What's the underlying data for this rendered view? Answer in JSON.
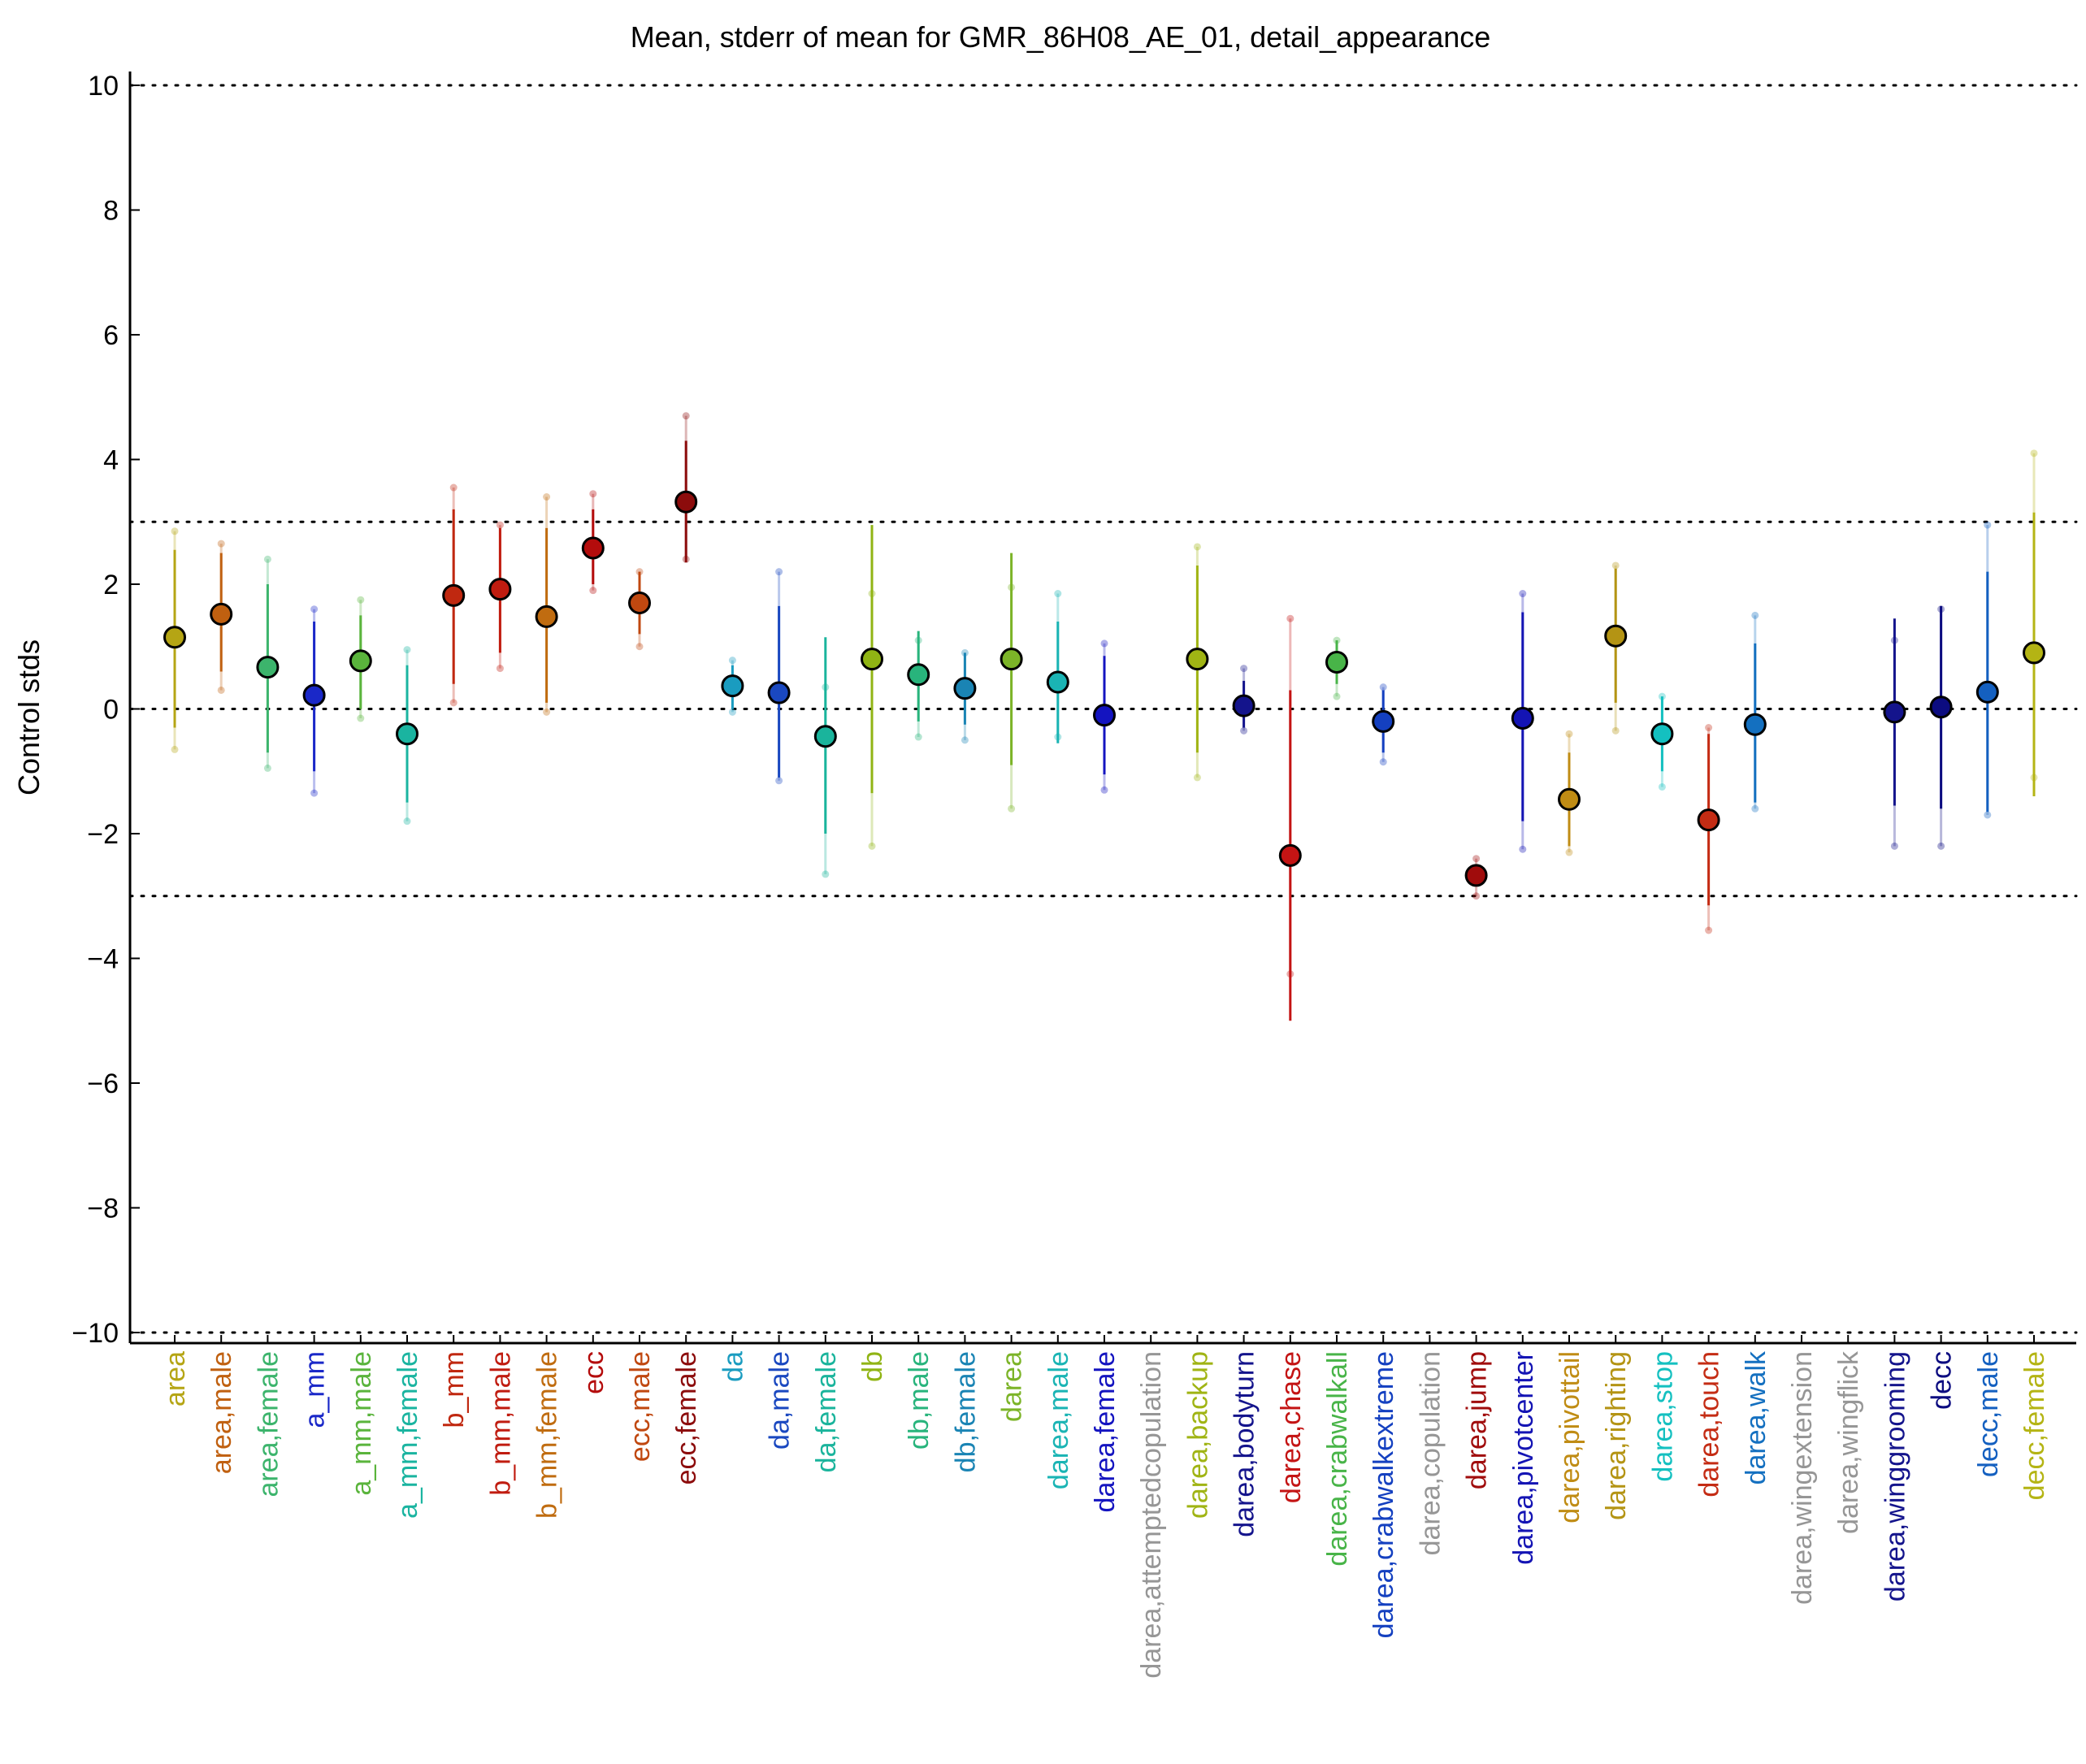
{
  "chart_data": {
    "type": "scatter",
    "title": "Mean, stderr of mean for GMR_86H08_AE_01, detail_appearance",
    "xlabel": "",
    "ylabel": "Control stds",
    "ylim": [
      -10.2,
      10.2
    ],
    "yticks": [
      -10,
      -8,
      -6,
      -4,
      -2,
      0,
      2,
      4,
      6,
      8,
      10
    ],
    "ytick_labels": [
      "−10",
      "−8",
      "−6",
      "−4",
      "−2",
      "0",
      "2",
      "4",
      "6",
      "8",
      "10"
    ],
    "reference_lines": [
      -10,
      -3,
      0,
      3,
      10
    ],
    "grid": false,
    "categories": [
      {
        "label": "area",
        "color": "#b5a514",
        "mean": 1.15,
        "err_lo": -0.3,
        "err_hi": 2.55,
        "pts": [
          -0.65,
          2.85
        ]
      },
      {
        "label": "area,male",
        "color": "#c06010",
        "mean": 1.52,
        "err_lo": 0.6,
        "err_hi": 2.5,
        "pts": [
          0.3,
          2.65
        ]
      },
      {
        "label": "area,female",
        "color": "#3cb46c",
        "mean": 0.67,
        "err_lo": -0.7,
        "err_hi": 2.0,
        "pts": [
          -0.95,
          2.4
        ]
      },
      {
        "label": "a_mm",
        "color": "#1a28c8",
        "mean": 0.22,
        "err_lo": -1.0,
        "err_hi": 1.4,
        "pts": [
          -1.35,
          1.6
        ]
      },
      {
        "label": "a_mm,male",
        "color": "#5ab43c",
        "mean": 0.77,
        "err_lo": 0.0,
        "err_hi": 1.5,
        "pts": [
          -0.15,
          1.75
        ]
      },
      {
        "label": "a_mm,female",
        "color": "#1ab4a0",
        "mean": -0.4,
        "err_lo": -1.5,
        "err_hi": 0.7,
        "pts": [
          -1.8,
          0.95
        ]
      },
      {
        "label": "b_mm",
        "color": "#c02810",
        "mean": 1.82,
        "err_lo": 0.4,
        "err_hi": 3.2,
        "pts": [
          0.1,
          3.55
        ]
      },
      {
        "label": "b_mm,male",
        "color": "#c01c10",
        "mean": 1.92,
        "err_lo": 0.9,
        "err_hi": 2.9,
        "pts": [
          0.65,
          2.95
        ]
      },
      {
        "label": "b_mm,female",
        "color": "#c06c10",
        "mean": 1.48,
        "err_lo": 0.1,
        "err_hi": 2.9,
        "pts": [
          -0.05,
          3.4
        ]
      },
      {
        "label": "ecc",
        "color": "#b40c0c",
        "mean": 2.58,
        "err_lo": 2.0,
        "err_hi": 3.2,
        "pts": [
          1.9,
          3.45
        ]
      },
      {
        "label": "ecc,male",
        "color": "#c04810",
        "mean": 1.7,
        "err_lo": 1.2,
        "err_hi": 2.2,
        "pts": [
          1.0,
          2.2
        ]
      },
      {
        "label": "ecc,female",
        "color": "#8c0c0c",
        "mean": 3.32,
        "err_lo": 2.35,
        "err_hi": 4.3,
        "pts": [
          2.4,
          4.7
        ]
      },
      {
        "label": "da",
        "color": "#1a9cc0",
        "mean": 0.37,
        "err_lo": 0.0,
        "err_hi": 0.7,
        "pts": [
          -0.05,
          0.78
        ]
      },
      {
        "label": "da,male",
        "color": "#1a48c0",
        "mean": 0.26,
        "err_lo": -1.1,
        "err_hi": 1.65,
        "pts": [
          -1.15,
          2.2
        ]
      },
      {
        "label": "da,female",
        "color": "#1ab49c",
        "mean": -0.44,
        "err_lo": -2.0,
        "err_hi": 1.15,
        "pts": [
          -2.65,
          0.35
        ]
      },
      {
        "label": "db",
        "color": "#90b414",
        "mean": 0.8,
        "err_lo": -1.35,
        "err_hi": 2.95,
        "pts": [
          -2.2,
          1.85
        ]
      },
      {
        "label": "db,male",
        "color": "#28b47c",
        "mean": 0.55,
        "err_lo": -0.2,
        "err_hi": 1.25,
        "pts": [
          -0.45,
          1.1
        ]
      },
      {
        "label": "db,female",
        "color": "#1a84b4",
        "mean": 0.33,
        "err_lo": -0.25,
        "err_hi": 0.9,
        "pts": [
          -0.5,
          0.9
        ]
      },
      {
        "label": "darea",
        "color": "#7cb428",
        "mean": 0.8,
        "err_lo": -0.9,
        "err_hi": 2.5,
        "pts": [
          -1.6,
          1.95
        ]
      },
      {
        "label": "darea,male",
        "color": "#1ab4b4",
        "mean": 0.43,
        "err_lo": -0.55,
        "err_hi": 1.4,
        "pts": [
          -0.45,
          1.85
        ]
      },
      {
        "label": "darea,female",
        "color": "#1414c0",
        "mean": -0.1,
        "err_lo": -1.05,
        "err_hi": 0.85,
        "pts": [
          -1.3,
          1.05
        ]
      },
      {
        "label": "darea,attemptedcopulation",
        "color": "#969696",
        "mean": null
      },
      {
        "label": "darea,backup",
        "color": "#a0b414",
        "mean": 0.8,
        "err_lo": -0.7,
        "err_hi": 2.3,
        "pts": [
          -1.1,
          2.6
        ]
      },
      {
        "label": "darea,bodyturn",
        "color": "#14148c",
        "mean": 0.05,
        "err_lo": -0.3,
        "err_hi": 0.45,
        "pts": [
          -0.35,
          0.65
        ]
      },
      {
        "label": "darea,chase",
        "color": "#c41414",
        "mean": -2.35,
        "err_lo": -5.0,
        "err_hi": 0.3,
        "pts": [
          -4.25,
          1.45
        ]
      },
      {
        "label": "darea,crabwalkall",
        "color": "#48b448",
        "mean": 0.75,
        "err_lo": 0.4,
        "err_hi": 1.1,
        "pts": [
          0.2,
          1.1
        ]
      },
      {
        "label": "darea,crabwalkextreme",
        "color": "#1440c0",
        "mean": -0.2,
        "err_lo": -0.7,
        "err_hi": 0.3,
        "pts": [
          -0.85,
          0.35
        ]
      },
      {
        "label": "darea,copulation",
        "color": "#969696",
        "mean": null
      },
      {
        "label": "darea,jump",
        "color": "#a00c0c",
        "mean": -2.67,
        "err_lo": -2.8,
        "err_hi": -2.5,
        "pts": [
          -3.0,
          -2.4
        ]
      },
      {
        "label": "darea,pivotcenter",
        "color": "#1414b4",
        "mean": -0.15,
        "err_lo": -1.8,
        "err_hi": 1.55,
        "pts": [
          -2.25,
          1.85
        ]
      },
      {
        "label": "darea,pivottail",
        "color": "#c08c14",
        "mean": -1.45,
        "err_lo": -2.2,
        "err_hi": -0.7,
        "pts": [
          -2.3,
          -0.4
        ]
      },
      {
        "label": "darea,righting",
        "color": "#b49414",
        "mean": 1.17,
        "err_lo": 0.1,
        "err_hi": 2.25,
        "pts": [
          -0.35,
          2.3
        ]
      },
      {
        "label": "darea,stop",
        "color": "#14c0c0",
        "mean": -0.4,
        "err_lo": -1.0,
        "err_hi": 0.2,
        "pts": [
          -1.25,
          0.2
        ]
      },
      {
        "label": "darea,touch",
        "color": "#c42c14",
        "mean": -1.78,
        "err_lo": -3.15,
        "err_hi": -0.4,
        "pts": [
          -3.55,
          -0.3
        ]
      },
      {
        "label": "darea,walk",
        "color": "#1470c0",
        "mean": -0.25,
        "err_lo": -1.5,
        "err_hi": 1.05,
        "pts": [
          -1.6,
          1.5
        ]
      },
      {
        "label": "darea,wingextension",
        "color": "#969696",
        "mean": null
      },
      {
        "label": "darea,wingflick",
        "color": "#969696",
        "mean": null
      },
      {
        "label": "darea,winggrooming",
        "color": "#14148c",
        "mean": -0.05,
        "err_lo": -1.55,
        "err_hi": 1.45,
        "pts": [
          -2.2,
          1.1
        ]
      },
      {
        "label": "decc",
        "color": "#0c0c80",
        "mean": 0.03,
        "err_lo": -1.6,
        "err_hi": 1.65,
        "pts": [
          -2.2,
          1.6
        ]
      },
      {
        "label": "decc,male",
        "color": "#1460c0",
        "mean": 0.27,
        "err_lo": -1.65,
        "err_hi": 2.2,
        "pts": [
          -1.7,
          2.95
        ]
      },
      {
        "label": "decc,female",
        "color": "#b4b414",
        "mean": 0.9,
        "err_lo": -1.4,
        "err_hi": 3.15,
        "pts": [
          -1.1,
          4.1
        ]
      }
    ]
  }
}
